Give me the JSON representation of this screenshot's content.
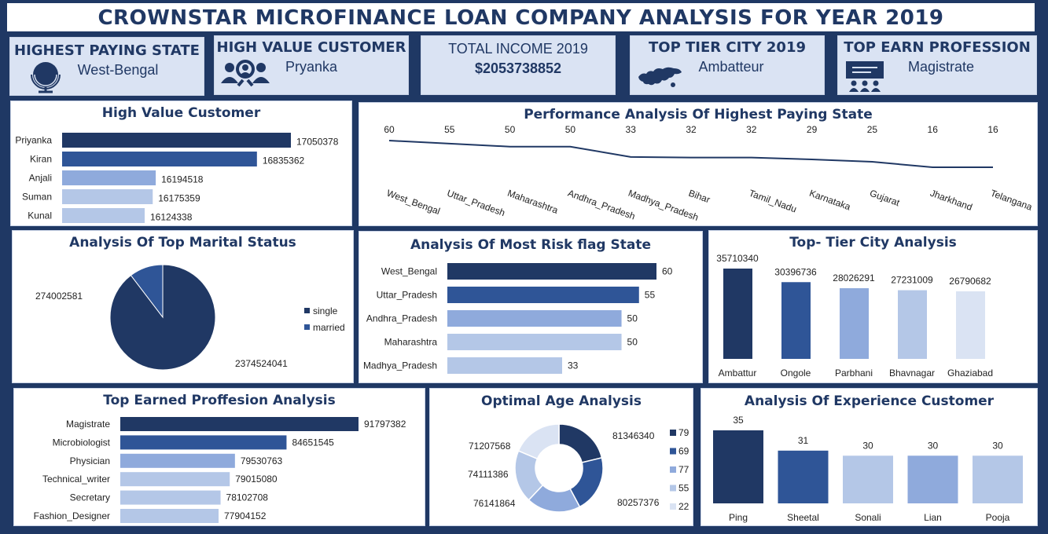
{
  "header": {
    "title": "CROWNSTAR MICROFINANCE LOAN COMPANY ANALYSIS FOR YEAR 2019"
  },
  "kpis": [
    {
      "title": "HIGHEST PAYING STATE",
      "value": "West-Bengal",
      "icon": "globe-icon"
    },
    {
      "title": "HIGH VALUE CUSTOMER",
      "value": "Pryanka",
      "icon": "customer-search-icon"
    },
    {
      "title": "TOTAL INCOME 2019",
      "value": "$2053738852",
      "icon": ""
    },
    {
      "title": "TOP TIER CITY 2019",
      "value": "Ambatteur",
      "icon": "world-map-icon"
    },
    {
      "title": "TOP EARN PROFESSION",
      "value": "Magistrate",
      "icon": "presentation-icon"
    }
  ],
  "colors": {
    "dark": "#203864",
    "mid": "#2f5597",
    "light1": "#8faadc",
    "light2": "#b4c7e7",
    "light3": "#dae3f3"
  },
  "chart_data": [
    {
      "id": "high_value_customer",
      "type": "bar",
      "orientation": "horizontal",
      "title": "High Value Customer",
      "categories": [
        "Priyanka",
        "Kiran",
        "Anjali",
        "Suman",
        "Kunal"
      ],
      "values": [
        17050378,
        16835362,
        16194518,
        16175359,
        16124338
      ]
    },
    {
      "id": "performance_state",
      "type": "line",
      "title": "Performance Analysis  Of Highest Paying State",
      "categories": [
        "West_Bengal",
        "Uttar_Pradesh",
        "Maharashtra",
        "Andhra_Pradesh",
        "Madhya_Pradesh",
        "Bihar",
        "Tamil_Nadu",
        "Karnataka",
        "Gujarat",
        "Jharkhand",
        "Telangana"
      ],
      "values": [
        60,
        55,
        50,
        50,
        33,
        32,
        32,
        29,
        25,
        16,
        16
      ]
    },
    {
      "id": "marital_status",
      "type": "pie",
      "title": "Analysis Of Top Marital Status",
      "categories": [
        "single",
        "married"
      ],
      "values": [
        2374524041,
        274002581
      ],
      "legend": "right"
    },
    {
      "id": "risk_flag_state",
      "type": "bar",
      "orientation": "horizontal",
      "title": "Analysis Of Most Risk flag State",
      "categories": [
        "West_Bengal",
        "Uttar_Pradesh",
        "Andhra_Pradesh",
        "Maharashtra",
        "Madhya_Pradesh"
      ],
      "values": [
        60,
        55,
        50,
        50,
        33
      ]
    },
    {
      "id": "top_tier_city",
      "type": "bar",
      "orientation": "vertical",
      "title": "Top- Tier City Analysis",
      "categories": [
        "Ambattur",
        "Ongole",
        "Parbhani",
        "Bhavnagar",
        "Ghaziabad"
      ],
      "values": [
        35710340,
        30396736,
        28026291,
        27231009,
        26790682
      ]
    },
    {
      "id": "profession",
      "type": "bar",
      "orientation": "horizontal",
      "title": "Top Earned Proffesion Analysis",
      "categories": [
        "Magistrate",
        "Microbiologist",
        "Physician",
        "Technical_writer",
        "Secretary",
        "Fashion_Designer"
      ],
      "values": [
        91797382,
        84651545,
        79530763,
        79015080,
        78102708,
        77904152
      ]
    },
    {
      "id": "optimal_age",
      "type": "pie",
      "variant": "doughnut",
      "title": "Optimal Age Analysis",
      "categories": [
        "79",
        "69",
        "77",
        "55",
        "22"
      ],
      "values": [
        81346340,
        80257376,
        76141864,
        74111386,
        71207568
      ],
      "legend": "right"
    },
    {
      "id": "experience",
      "type": "bar",
      "orientation": "vertical",
      "title": "Analysis Of  Experience Customer",
      "categories": [
        "Ping",
        "Sheetal",
        "Sonali",
        "Lian",
        "Pooja"
      ],
      "values": [
        35,
        31,
        30,
        30,
        30
      ]
    }
  ]
}
